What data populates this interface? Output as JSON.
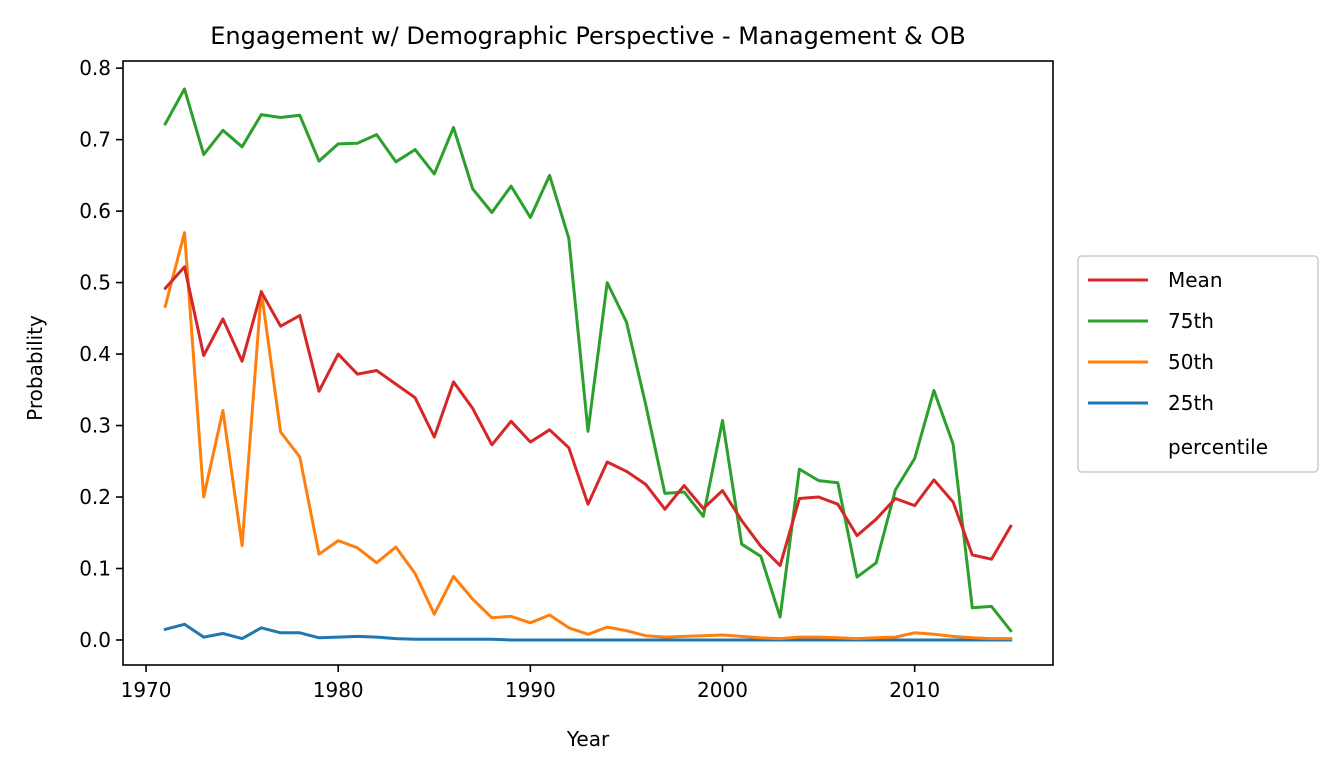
{
  "chart_data": {
    "type": "line",
    "title": "Engagement w/ Demographic Perspective - Management & OB",
    "xlabel": "Year",
    "ylabel": "Probability",
    "xlim": [
      1968.8,
      2017.2
    ],
    "ylim": [
      -0.035,
      0.81
    ],
    "xticks": [
      1970,
      1980,
      1990,
      2000,
      2010
    ],
    "yticks": [
      "0.0",
      "0.1",
      "0.2",
      "0.3",
      "0.4",
      "0.5",
      "0.6",
      "0.7",
      "0.8"
    ],
    "grid": false,
    "legend_position": "right",
    "legend_extra": "percentile",
    "x": [
      1971,
      1972,
      1973,
      1974,
      1975,
      1976,
      1977,
      1978,
      1979,
      1980,
      1981,
      1982,
      1983,
      1984,
      1985,
      1986,
      1987,
      1988,
      1989,
      1990,
      1991,
      1992,
      1993,
      1994,
      1995,
      1996,
      1997,
      1998,
      1999,
      2000,
      2001,
      2002,
      2003,
      2004,
      2005,
      2006,
      2007,
      2008,
      2009,
      2010,
      2011,
      2012,
      2013,
      2014,
      2015
    ],
    "series": [
      {
        "name": "Mean",
        "color": "#d62728",
        "values": [
          0.492,
          0.522,
          0.398,
          0.449,
          0.39,
          0.487,
          0.439,
          0.454,
          0.348,
          0.4,
          0.372,
          0.377,
          0.358,
          0.339,
          0.284,
          0.361,
          0.324,
          0.273,
          0.306,
          0.277,
          0.294,
          0.269,
          0.19,
          0.249,
          0.236,
          0.218,
          0.183,
          0.216,
          0.184,
          0.209,
          0.167,
          0.131,
          0.104,
          0.198,
          0.2,
          0.19,
          0.146,
          0.169,
          0.198,
          0.188,
          0.224,
          0.193,
          0.119,
          0.113,
          0.159
        ]
      },
      {
        "name": "75th",
        "color": "#2ca02c",
        "values": [
          0.722,
          0.771,
          0.679,
          0.713,
          0.69,
          0.735,
          0.731,
          0.734,
          0.67,
          0.694,
          0.695,
          0.707,
          0.669,
          0.686,
          0.652,
          0.717,
          0.631,
          0.598,
          0.635,
          0.591,
          0.65,
          0.562,
          0.292,
          0.5,
          0.445,
          0.33,
          0.205,
          0.207,
          0.173,
          0.307,
          0.134,
          0.117,
          0.032,
          0.239,
          0.223,
          0.22,
          0.088,
          0.108,
          0.21,
          0.254,
          0.349,
          0.274,
          0.045,
          0.047,
          0.013
        ]
      },
      {
        "name": "50th",
        "color": "#ff7f0e",
        "values": [
          0.467,
          0.57,
          0.2,
          0.321,
          0.132,
          0.488,
          0.291,
          0.256,
          0.12,
          0.139,
          0.129,
          0.108,
          0.13,
          0.093,
          0.036,
          0.089,
          0.057,
          0.031,
          0.033,
          0.024,
          0.035,
          0.017,
          0.008,
          0.018,
          0.013,
          0.006,
          0.004,
          0.005,
          0.006,
          0.007,
          0.005,
          0.003,
          0.002,
          0.004,
          0.004,
          0.003,
          0.002,
          0.003,
          0.004,
          0.01,
          0.008,
          0.005,
          0.003,
          0.002,
          0.002
        ]
      },
      {
        "name": "25th",
        "color": "#1f77b4",
        "values": [
          0.015,
          0.022,
          0.004,
          0.009,
          0.002,
          0.017,
          0.01,
          0.01,
          0.003,
          0.004,
          0.005,
          0.004,
          0.002,
          0.001,
          0.001,
          0.001,
          0.001,
          0.001,
          0.0,
          0.0,
          0.0,
          0.0,
          0.0,
          0.0,
          0.0,
          0.0,
          0.0,
          0.0,
          0.0,
          0.0,
          0.0,
          0.0,
          0.0,
          0.0,
          0.0,
          0.0,
          0.0,
          0.0,
          0.0,
          0.0,
          0.0,
          0.0,
          0.0,
          0.0,
          0.0
        ]
      }
    ]
  }
}
